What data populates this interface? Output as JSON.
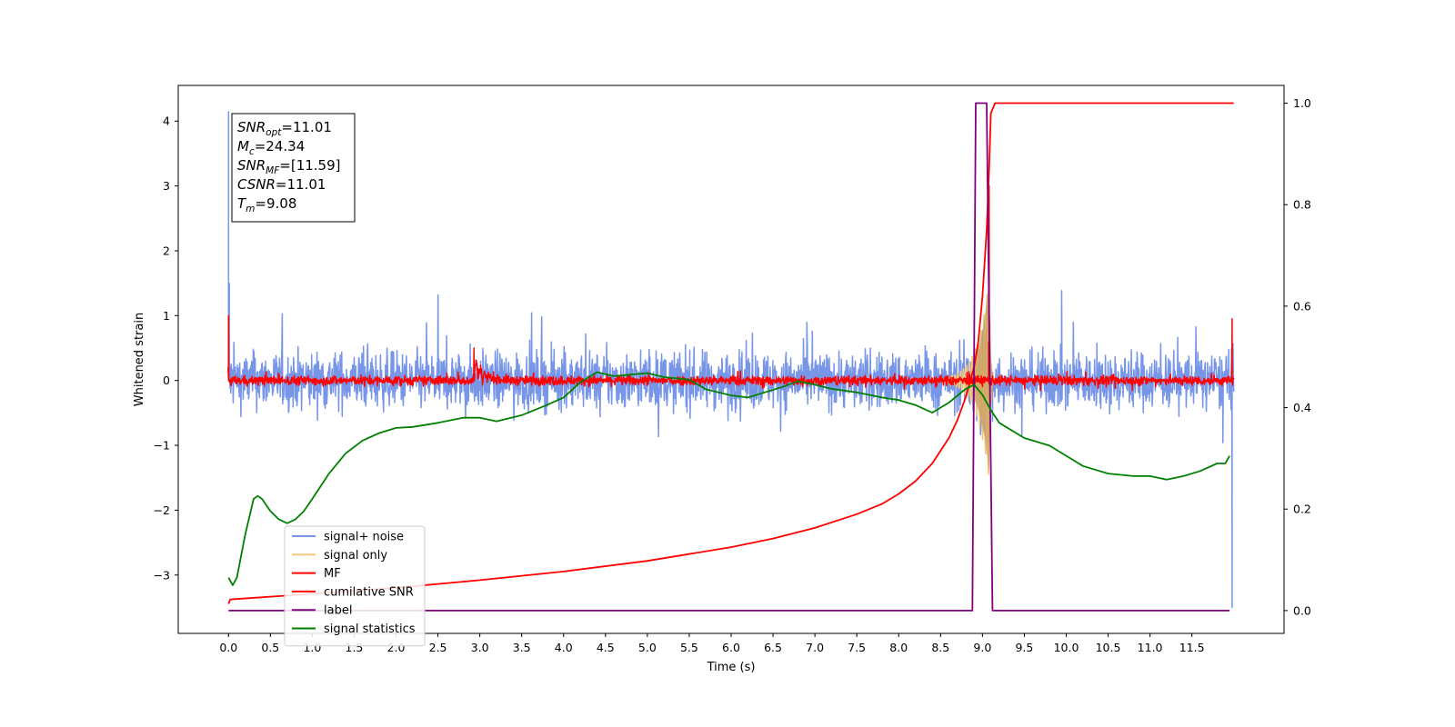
{
  "chart_data": {
    "type": "line",
    "title": "",
    "xlabel": "Time (s)",
    "ylabel": "Whitened strain",
    "xlim": [
      -0.6,
      12.6
    ],
    "ylim": [
      -3.9,
      4.55
    ],
    "y2lim": [
      -0.045,
      1.035
    ],
    "xticks": [
      "0.0",
      "0.5",
      "1.0",
      "1.5",
      "2.0",
      "2.5",
      "3.0",
      "3.5",
      "4.0",
      "4.5",
      "5.0",
      "5.5",
      "6.0",
      "6.5",
      "7.0",
      "7.5",
      "8.0",
      "8.5",
      "9.0",
      "9.5",
      "10.0",
      "10.5",
      "11.0",
      "11.5"
    ],
    "yticks": [
      -3,
      -2,
      -1,
      0,
      1,
      2,
      3,
      4
    ],
    "y2ticks": [
      "0.0",
      "0.2",
      "0.4",
      "0.6",
      "0.8",
      "1.0"
    ],
    "grid": false,
    "legend_position": "lower-left",
    "annotation": {
      "lines": [
        {
          "var": "SNR",
          "sub": "opt",
          "value": "=11.01"
        },
        {
          "var": "M",
          "sub": "c",
          "value": "=24.34"
        },
        {
          "var": "SNR",
          "sub": "MF",
          "value": "=[11.59]"
        },
        {
          "var": "CSNR",
          "sub": "",
          "value": "=11.01"
        },
        {
          "var": "T",
          "sub": "m",
          "value": "=9.08"
        }
      ]
    },
    "series": [
      {
        "name": "signal+ noise",
        "color": "#7896e8",
        "axis": "left",
        "kind": "noise",
        "t_start": 0.0,
        "t_end": 12.0,
        "amplitude": 1.35,
        "spikes": [
          [
            0.0,
            4.15
          ],
          [
            0.01,
            1.5
          ],
          [
            11.98,
            -3.5
          ]
        ]
      },
      {
        "name": "signal only",
        "color": "#f5c77a",
        "axis": "left",
        "kind": "chirp",
        "t_end": 9.08,
        "peak": 1.6
      },
      {
        "name": "MF",
        "color": "#ff0000",
        "axis": "left",
        "kind": "noise",
        "t_start": 0.0,
        "t_end": 12.0,
        "amplitude": 0.2,
        "spikes": [
          [
            0.0,
            1.0
          ],
          [
            2.93,
            0.5
          ],
          [
            9.08,
            3.0
          ],
          [
            11.98,
            0.95
          ]
        ]
      },
      {
        "name": "cumilative SNR",
        "color": "#ff0000",
        "axis": "right",
        "x": [
          0.0,
          0.02,
          1.0,
          2.0,
          3.0,
          4.0,
          5.0,
          6.0,
          6.5,
          7.0,
          7.5,
          7.8,
          8.0,
          8.2,
          8.4,
          8.6,
          8.7,
          8.8,
          8.9,
          8.95,
          9.0,
          9.05,
          9.08,
          9.1,
          9.15,
          12.0
        ],
        "values": [
          0.013,
          0.022,
          0.033,
          0.045,
          0.06,
          0.077,
          0.098,
          0.125,
          0.142,
          0.163,
          0.19,
          0.21,
          0.23,
          0.255,
          0.29,
          0.34,
          0.375,
          0.42,
          0.48,
          0.53,
          0.62,
          0.75,
          0.87,
          0.98,
          1.0,
          1.0
        ]
      },
      {
        "name": "label",
        "color": "#800080",
        "axis": "right",
        "x": [
          0.0,
          8.88,
          8.92,
          9.05,
          9.12,
          11.95
        ],
        "values": [
          0.0,
          0.0,
          1.0,
          1.0,
          0.0,
          0.0
        ]
      },
      {
        "name": "signal statistics",
        "color": "#008000",
        "axis": "right",
        "x": [
          0.0,
          0.05,
          0.1,
          0.2,
          0.3,
          0.35,
          0.4,
          0.5,
          0.6,
          0.7,
          0.8,
          0.9,
          1.0,
          1.2,
          1.4,
          1.6,
          1.8,
          2.0,
          2.2,
          2.5,
          2.8,
          3.0,
          3.2,
          3.5,
          3.8,
          4.0,
          4.2,
          4.4,
          4.6,
          4.8,
          5.0,
          5.2,
          5.5,
          5.7,
          6.0,
          6.2,
          6.4,
          6.6,
          6.8,
          7.0,
          7.2,
          7.5,
          7.8,
          8.0,
          8.2,
          8.4,
          8.6,
          8.8,
          8.9,
          9.0,
          9.1,
          9.2,
          9.5,
          9.8,
          10.0,
          10.2,
          10.5,
          10.8,
          11.0,
          11.2,
          11.4,
          11.6,
          11.8,
          11.9,
          11.95
        ],
        "values": [
          0.065,
          0.05,
          0.065,
          0.15,
          0.22,
          0.226,
          0.22,
          0.196,
          0.18,
          0.172,
          0.18,
          0.196,
          0.22,
          0.27,
          0.31,
          0.335,
          0.35,
          0.36,
          0.362,
          0.37,
          0.38,
          0.38,
          0.373,
          0.385,
          0.405,
          0.42,
          0.45,
          0.47,
          0.462,
          0.465,
          0.468,
          0.46,
          0.455,
          0.436,
          0.424,
          0.42,
          0.43,
          0.44,
          0.452,
          0.445,
          0.437,
          0.43,
          0.42,
          0.415,
          0.405,
          0.39,
          0.41,
          0.437,
          0.445,
          0.425,
          0.395,
          0.37,
          0.34,
          0.325,
          0.305,
          0.285,
          0.27,
          0.265,
          0.265,
          0.258,
          0.265,
          0.275,
          0.29,
          0.29,
          0.305
        ]
      }
    ]
  }
}
